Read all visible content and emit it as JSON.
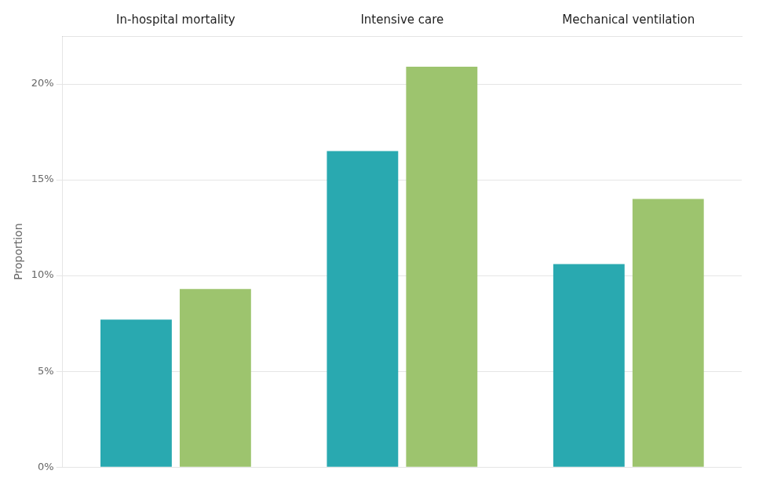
{
  "chart_data": {
    "type": "bar",
    "categories": [
      "In-hospital mortality",
      "Intensive care",
      "Mechanical ventilation"
    ],
    "series": [
      {
        "color": "#29a9b0",
        "values": [
          0.077,
          0.165,
          0.106
        ]
      },
      {
        "color": "#9dc46e",
        "values": [
          0.093,
          0.209,
          0.14
        ]
      }
    ],
    "ylabel": "Proportion",
    "ylim": [
      0,
      0.225
    ],
    "yticks": [
      {
        "value": 0.0,
        "label": "0%"
      },
      {
        "value": 0.05,
        "label": "5%"
      },
      {
        "value": 0.1,
        "label": "10%"
      },
      {
        "value": 0.15,
        "label": "15%"
      },
      {
        "value": 0.2,
        "label": "20%"
      }
    ],
    "grid": true
  }
}
